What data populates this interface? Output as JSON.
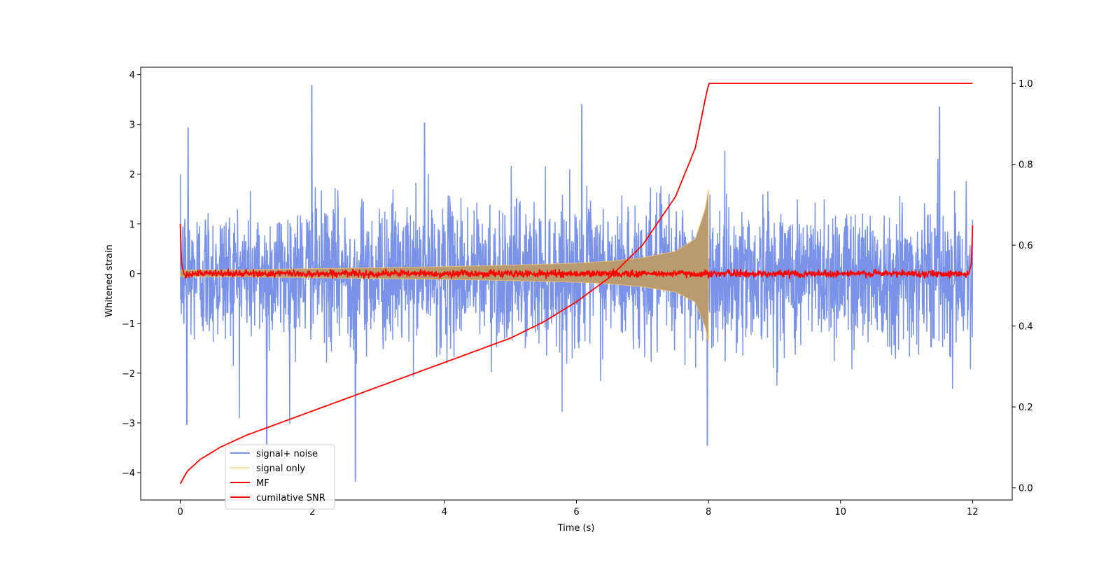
{
  "chart_data": {
    "type": "line",
    "xlabel": "Time (s)",
    "ylabel": "Whitened strain",
    "xlim": [
      -0.6,
      12.6
    ],
    "ylim": [
      -4.55,
      4.15
    ],
    "y2lim": [
      -0.03,
      1.04
    ],
    "xticks": [
      0,
      2,
      4,
      6,
      8,
      10,
      12
    ],
    "yticks": [
      -4,
      -3,
      -2,
      -1,
      0,
      1,
      2,
      3,
      4
    ],
    "y2ticks": [
      0.0,
      0.2,
      0.4,
      0.6,
      0.8,
      1.0
    ],
    "legend_position": "lower-left",
    "grid": false,
    "series": [
      {
        "name": "signal+ noise",
        "color": "#6b87e6",
        "axis": "left",
        "description_stats": {
          "t_start": 0,
          "t_end": 12,
          "typical_range": [
            -1.9,
            1.9
          ],
          "max": 3.78,
          "min": -4.17
        },
        "notable_peaks": [
          [
            0.12,
            2.93
          ],
          [
            0.1,
            -3.03
          ],
          [
            1.99,
            3.78
          ],
          [
            1.31,
            -3.45
          ],
          [
            2.65,
            -4.17
          ],
          [
            3.7,
            3.03
          ],
          [
            6.08,
            3.4
          ],
          [
            7.98,
            -3.45
          ],
          [
            11.5,
            3.35
          ]
        ]
      },
      {
        "name": "signal only",
        "color": "#ffc966",
        "axis": "left",
        "envelope": [
          [
            0,
            0.07
          ],
          [
            1,
            0.08
          ],
          [
            2,
            0.1
          ],
          [
            3,
            0.12
          ],
          [
            4,
            0.14
          ],
          [
            5,
            0.17
          ],
          [
            6,
            0.21
          ],
          [
            6.5,
            0.25
          ],
          [
            7,
            0.32
          ],
          [
            7.5,
            0.45
          ],
          [
            7.8,
            0.7
          ],
          [
            7.95,
            1.3
          ],
          [
            8.0,
            1.7
          ],
          [
            8.01,
            0.0
          ],
          [
            12,
            0.0
          ]
        ]
      },
      {
        "name": "MF",
        "color": "#ff0000",
        "axis": "left",
        "points": [
          [
            0,
            1.0
          ],
          [
            0.02,
            0.2
          ],
          [
            0.05,
            0.03
          ],
          [
            11.95,
            0.03
          ],
          [
            11.98,
            0.2
          ],
          [
            12.0,
            0.97
          ]
        ],
        "noise_amplitude": 0.05
      },
      {
        "name": "cumilative SNR",
        "color": "#ff0000",
        "axis": "right",
        "points": [
          [
            0,
            0.01
          ],
          [
            0.1,
            0.04
          ],
          [
            0.3,
            0.07
          ],
          [
            0.6,
            0.1
          ],
          [
            1,
            0.13
          ],
          [
            2,
            0.19
          ],
          [
            3,
            0.25
          ],
          [
            4,
            0.31
          ],
          [
            5,
            0.37
          ],
          [
            5.5,
            0.41
          ],
          [
            6,
            0.46
          ],
          [
            6.5,
            0.52
          ],
          [
            7,
            0.6
          ],
          [
            7.5,
            0.72
          ],
          [
            7.8,
            0.84
          ],
          [
            8.0,
            1.0
          ],
          [
            12,
            1.0
          ]
        ]
      }
    ]
  }
}
